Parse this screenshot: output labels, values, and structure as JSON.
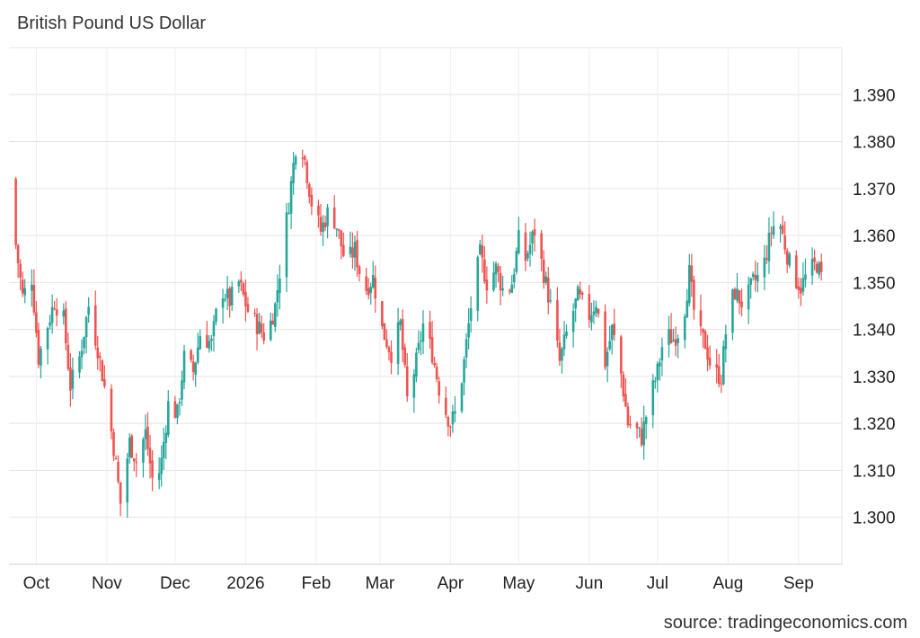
{
  "chart_data": {
    "type": "candlestick",
    "title": "British Pound US Dollar",
    "source": "source: tradingeconomics.com",
    "ylim": [
      1.29,
      1.4
    ],
    "y_ticks": [
      "1.300",
      "1.310",
      "1.320",
      "1.330",
      "1.340",
      "1.350",
      "1.360",
      "1.370",
      "1.380",
      "1.390"
    ],
    "x_ticks": [
      "Oct",
      "Nov",
      "Dec",
      "2026",
      "Feb",
      "Mar",
      "Apr",
      "May",
      "Jun",
      "Jul",
      "Aug",
      "Sep"
    ],
    "up_color": "#26a69a",
    "down_color": "#ef5350",
    "grid": true,
    "series_anchors": [
      {
        "date": "Sep 20",
        "close": 1.37
      },
      {
        "date": "Sep 22",
        "close": 1.358
      },
      {
        "date": "Sep 25",
        "close": 1.347
      },
      {
        "date": "Sep 29",
        "close": 1.351
      },
      {
        "date": "Oct 2",
        "close": 1.334
      },
      {
        "date": "Oct 6",
        "close": 1.341
      },
      {
        "date": "Oct 9",
        "close": 1.346
      },
      {
        "date": "Oct 13",
        "close": 1.342
      },
      {
        "date": "Oct 16",
        "close": 1.328
      },
      {
        "date": "Oct 20",
        "close": 1.334
      },
      {
        "date": "Oct 24",
        "close": 1.345
      },
      {
        "date": "Oct 28",
        "close": 1.336
      },
      {
        "date": "Nov 1",
        "close": 1.325
      },
      {
        "date": "Nov 4",
        "close": 1.315
      },
      {
        "date": "Nov 7",
        "close": 1.303
      },
      {
        "date": "Nov 11",
        "close": 1.316
      },
      {
        "date": "Nov 14",
        "close": 1.312
      },
      {
        "date": "Nov 18",
        "close": 1.318
      },
      {
        "date": "Nov 22",
        "close": 1.305
      },
      {
        "date": "Nov 25",
        "close": 1.312
      },
      {
        "date": "Nov 28",
        "close": 1.324
      },
      {
        "date": "Dec 2",
        "close": 1.322
      },
      {
        "date": "Dec 5",
        "close": 1.334
      },
      {
        "date": "Dec 9",
        "close": 1.331
      },
      {
        "date": "Dec 12",
        "close": 1.339
      },
      {
        "date": "Dec 17",
        "close": 1.337
      },
      {
        "date": "Dec 21",
        "close": 1.349
      },
      {
        "date": "Dec 25",
        "close": 1.346
      },
      {
        "date": "Dec 29",
        "close": 1.35
      },
      {
        "date": "Jan 2",
        "close": 1.344
      },
      {
        "date": "Jan 6",
        "close": 1.341
      },
      {
        "date": "Jan 10",
        "close": 1.338
      },
      {
        "date": "Jan 14",
        "close": 1.345
      },
      {
        "date": "Jan 17",
        "close": 1.356
      },
      {
        "date": "Jan 20",
        "close": 1.367
      },
      {
        "date": "Jan 24",
        "close": 1.383
      },
      {
        "date": "Jan 27",
        "close": 1.376
      },
      {
        "date": "Jan 30",
        "close": 1.367
      },
      {
        "date": "Feb 3",
        "close": 1.361
      },
      {
        "date": "Feb 7",
        "close": 1.366
      },
      {
        "date": "Feb 10",
        "close": 1.362
      },
      {
        "date": "Feb 14",
        "close": 1.354
      },
      {
        "date": "Feb 18",
        "close": 1.357
      },
      {
        "date": "Feb 22",
        "close": 1.348
      },
      {
        "date": "Feb 26",
        "close": 1.351
      },
      {
        "date": "Mar 2",
        "close": 1.34
      },
      {
        "date": "Mar 6",
        "close": 1.335
      },
      {
        "date": "Mar 10",
        "close": 1.341
      },
      {
        "date": "Mar 13",
        "close": 1.325
      },
      {
        "date": "Mar 17",
        "close": 1.333
      },
      {
        "date": "Mar 20",
        "close": 1.341
      },
      {
        "date": "Mar 24",
        "close": 1.335
      },
      {
        "date": "Mar 28",
        "close": 1.325
      },
      {
        "date": "Apr 1",
        "close": 1.32
      },
      {
        "date": "Apr 4",
        "close": 1.323
      },
      {
        "date": "Apr 7",
        "close": 1.333
      },
      {
        "date": "Apr 10",
        "close": 1.345
      },
      {
        "date": "Apr 14",
        "close": 1.356
      },
      {
        "date": "Apr 17",
        "close": 1.35
      },
      {
        "date": "Apr 21",
        "close": 1.353
      },
      {
        "date": "Apr 25",
        "close": 1.347
      },
      {
        "date": "Apr 28",
        "close": 1.35
      },
      {
        "date": "May 1",
        "close": 1.359
      },
      {
        "date": "May 4",
        "close": 1.355
      },
      {
        "date": "May 8",
        "close": 1.361
      },
      {
        "date": "May 12",
        "close": 1.352
      },
      {
        "date": "May 15",
        "close": 1.345
      },
      {
        "date": "May 19",
        "close": 1.333
      },
      {
        "date": "May 23",
        "close": 1.341
      },
      {
        "date": "May 27",
        "close": 1.347
      },
      {
        "date": "Jun 1",
        "close": 1.343
      },
      {
        "date": "Jun 4",
        "close": 1.346
      },
      {
        "date": "Jun 8",
        "close": 1.333
      },
      {
        "date": "Jun 11",
        "close": 1.34
      },
      {
        "date": "Jun 14",
        "close": 1.334
      },
      {
        "date": "Jun 18",
        "close": 1.32
      },
      {
        "date": "Jun 21",
        "close": 1.319
      },
      {
        "date": "Jun 24",
        "close": 1.317
      },
      {
        "date": "Jun 27",
        "close": 1.324
      },
      {
        "date": "Jul 1",
        "close": 1.331
      },
      {
        "date": "Jul 4",
        "close": 1.339
      },
      {
        "date": "Jul 8",
        "close": 1.338
      },
      {
        "date": "Jul 12",
        "close": 1.341
      },
      {
        "date": "Jul 15",
        "close": 1.352
      },
      {
        "date": "Jul 18",
        "close": 1.34
      },
      {
        "date": "Jul 22",
        "close": 1.337
      },
      {
        "date": "Jul 25",
        "close": 1.331
      },
      {
        "date": "Jul 29",
        "close": 1.33
      },
      {
        "date": "Aug 1",
        "close": 1.344
      },
      {
        "date": "Aug 4",
        "close": 1.348
      },
      {
        "date": "Aug 8",
        "close": 1.345
      },
      {
        "date": "Aug 12",
        "close": 1.35
      },
      {
        "date": "Aug 16",
        "close": 1.352
      },
      {
        "date": "Aug 20",
        "close": 1.361
      },
      {
        "date": "Aug 23",
        "close": 1.364
      },
      {
        "date": "Aug 26",
        "close": 1.358
      },
      {
        "date": "Aug 29",
        "close": 1.352
      },
      {
        "date": "Sep 2",
        "close": 1.349
      },
      {
        "date": "Sep 5",
        "close": 1.352
      },
      {
        "date": "Sep 9",
        "close": 1.354
      },
      {
        "date": "Sep 13",
        "close": 1.348
      }
    ]
  }
}
